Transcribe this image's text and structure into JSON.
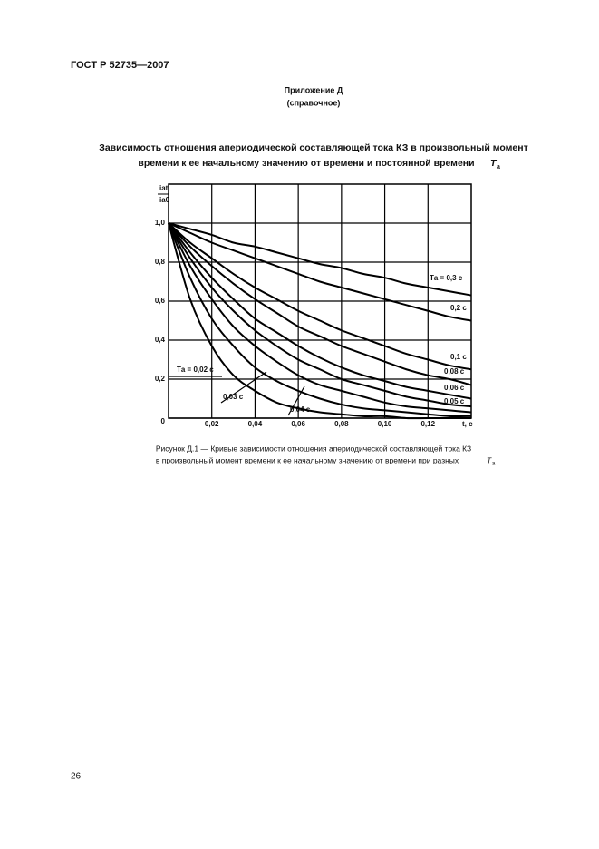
{
  "header": {
    "standard": "ГОСТ Р 52735—2007",
    "appendix": "Приложение Д",
    "appendix_note": "(справочное)"
  },
  "heading": {
    "line1": "Зависимость отношения апериодической составляющей тока КЗ в произвольный момент",
    "line2": "времени к ее начальному значению от времени и постоянной времени",
    "symbol": "T",
    "symbol_sub": "а"
  },
  "chart_data": {
    "type": "line",
    "y_label": {
      "numerator": "iаt",
      "denominator": "iа0"
    },
    "x_label": "t, с",
    "x": [
      0,
      0.01,
      0.02,
      0.03,
      0.04,
      0.05,
      0.06,
      0.07,
      0.08,
      0.09,
      0.1,
      0.11,
      0.12,
      0.13,
      0.14
    ],
    "xlim": [
      0,
      0.14
    ],
    "ylim": [
      0,
      1.2
    ],
    "xticks": [
      {
        "value": 0.02,
        "label": "0,02"
      },
      {
        "value": 0.04,
        "label": "0,04"
      },
      {
        "value": 0.06,
        "label": "0,06"
      },
      {
        "value": 0.08,
        "label": "0,08"
      },
      {
        "value": 0.1,
        "label": "0,10"
      },
      {
        "value": 0.12,
        "label": "0,12"
      }
    ],
    "yticks": [
      0,
      {
        "value": 0.2,
        "label": "0,2"
      },
      {
        "value": 0.4,
        "label": "0,4"
      },
      {
        "value": 0.6,
        "label": "0,6"
      },
      {
        "value": 0.8,
        "label": "0,8"
      },
      {
        "value": 1,
        "label": "1,0"
      }
    ],
    "grid": true,
    "series": [
      {
        "name": "Tа = 0,3 с",
        "color": "#000000",
        "values": [
          1,
          0.97,
          0.94,
          0.9,
          0.88,
          0.85,
          0.82,
          0.79,
          0.77,
          0.74,
          0.72,
          0.69,
          0.67,
          0.65,
          0.63
        ]
      },
      {
        "name": "0,2 с",
        "color": "#000000",
        "values": [
          1,
          0.95,
          0.9,
          0.86,
          0.82,
          0.78,
          0.74,
          0.7,
          0.67,
          0.64,
          0.61,
          0.58,
          0.55,
          0.52,
          0.5
        ]
      },
      {
        "name": "0,1 с",
        "color": "#000000",
        "values": [
          1,
          0.9,
          0.82,
          0.74,
          0.67,
          0.61,
          0.55,
          0.5,
          0.45,
          0.41,
          0.37,
          0.33,
          0.3,
          0.27,
          0.25
        ]
      },
      {
        "name": "0,08 с",
        "color": "#000000",
        "values": [
          1,
          0.88,
          0.78,
          0.69,
          0.61,
          0.54,
          0.47,
          0.42,
          0.37,
          0.33,
          0.29,
          0.25,
          0.22,
          0.2,
          0.17
        ]
      },
      {
        "name": "0,06 с",
        "color": "#000000",
        "values": [
          1,
          0.85,
          0.72,
          0.61,
          0.51,
          0.44,
          0.37,
          0.31,
          0.26,
          0.22,
          0.19,
          0.16,
          0.14,
          0.12,
          0.1
        ]
      },
      {
        "name": "0,05 с",
        "color": "#000000",
        "values": [
          1,
          0.82,
          0.67,
          0.55,
          0.45,
          0.37,
          0.3,
          0.25,
          0.2,
          0.17,
          0.14,
          0.11,
          0.09,
          0.07,
          0.06
        ]
      },
      {
        "name": "0,04 с",
        "color": "#000000",
        "values": [
          1,
          0.78,
          0.61,
          0.47,
          0.37,
          0.29,
          0.22,
          0.17,
          0.14,
          0.11,
          0.08,
          0.06,
          0.05,
          0.04,
          0.03
        ]
      },
      {
        "name": "0,03 с",
        "color": "#000000",
        "values": [
          1,
          0.72,
          0.51,
          0.37,
          0.26,
          0.19,
          0.14,
          0.1,
          0.07,
          0.05,
          0.04,
          0.03,
          0.02,
          0.01,
          0.01
        ]
      },
      {
        "name": "Tа = 0,02 с",
        "color": "#000000",
        "values": [
          1,
          0.61,
          0.37,
          0.22,
          0.14,
          0.08,
          0.05,
          0.03,
          0.02,
          0.01,
          0.01,
          0,
          0,
          0,
          0
        ]
      }
    ]
  },
  "caption": {
    "line1": "Рисунок Д.1 — Кривые зависимости отношения апериодической составляющей тока КЗ",
    "line2": "в произвольный момент времени к ее начальному значению от времени при разных",
    "symbol": "T",
    "symbol_sub": "а"
  },
  "footer": {
    "page": "26"
  }
}
